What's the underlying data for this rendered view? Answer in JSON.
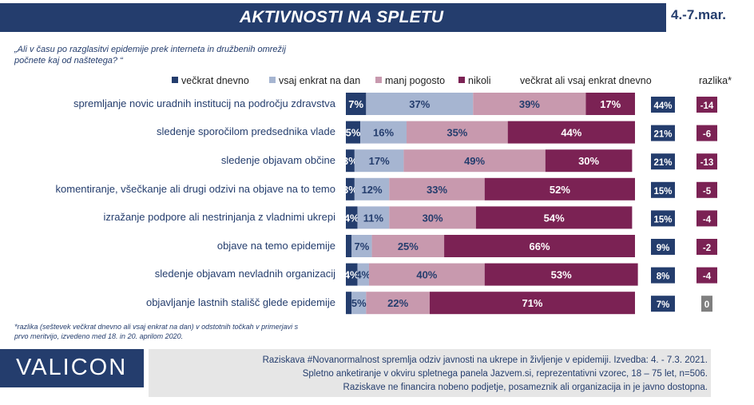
{
  "header": {
    "title": "AKTIVNOSTI NA SPLETU",
    "date": "4.-7.mar."
  },
  "question": "„Ali v času po razglasitvi epidemije prek interneta in družbenih omrežij počnete kaj od naštetega? “",
  "legend": [
    {
      "label": "večkrat dnevno",
      "color": "#243d6d"
    },
    {
      "label": "vsaj enkrat na dan",
      "color": "#a6b5d1"
    },
    {
      "label": "manj pogosto",
      "color": "#c899ae"
    },
    {
      "label": "nikoli",
      "color": "#7b2254"
    }
  ],
  "column_headers": {
    "combined": "večkrat ali vsaj enkrat dnevno",
    "difference": "razlika*"
  },
  "colors": {
    "navy": "#243d6d",
    "light_blue": "#a6b5d1",
    "pink": "#c899ae",
    "plum": "#7b2254",
    "gray": "#7f7f7f"
  },
  "chart_data": {
    "type": "bar",
    "stacked": true,
    "orientation": "horizontal",
    "categories": [
      "spremljanje novic uradnih institucij na področju zdravstva",
      "sledenje sporočilom predsednika vlade",
      "sledenje objavam občine",
      "komentiranje, všečkanje ali drugi odzivi na objave na to temo",
      "izražanje podpore ali nestrinjanja z vladnimi ukrepi",
      "objave na temo epidemije",
      "sledenje objavam nevladnih organizacij",
      "objavljanje lastnih stališč glede epidemije"
    ],
    "series": [
      {
        "name": "večkrat dnevno",
        "values": [
          7,
          5,
          3,
          3,
          4,
          2,
          4,
          2
        ],
        "labels": [
          "7%",
          "5%",
          "3%",
          "3%",
          "4%",
          "",
          "4%",
          ""
        ]
      },
      {
        "name": "vsaj enkrat na dan",
        "values": [
          37,
          16,
          17,
          12,
          11,
          7,
          4,
          5
        ],
        "labels": [
          "37%",
          "16%",
          "17%",
          "12%",
          "11%",
          "7%",
          "4%",
          "5%"
        ]
      },
      {
        "name": "manj pogosto",
        "values": [
          39,
          35,
          49,
          33,
          30,
          25,
          40,
          22
        ],
        "labels": [
          "39%",
          "35%",
          "49%",
          "33%",
          "30%",
          "25%",
          "40%",
          "22%"
        ]
      },
      {
        "name": "nikoli",
        "values": [
          17,
          44,
          30,
          52,
          54,
          66,
          53,
          71
        ],
        "labels": [
          "17%",
          "44%",
          "30%",
          "52%",
          "54%",
          "66%",
          "53%",
          "71%"
        ]
      }
    ],
    "combined": [
      "44%",
      "21%",
      "21%",
      "15%",
      "15%",
      "9%",
      "8%",
      "7%"
    ],
    "difference": [
      "-14",
      "-6",
      "-13",
      "-5",
      "-4",
      "-2",
      "-4",
      "0"
    ],
    "xlim": [
      0,
      100
    ]
  },
  "footnote": "*razlika (seštevek večkrat dnevno ali vsaj enkrat na dan) v odstotnih točkah v primerjavi s prvo meritvijo, izvedeno med 18. in 20. aprilom 2020.",
  "logo": "VALICON",
  "info": [
    "Raziskava #Novanormalnost spremlja odziv javnosti na ukrepe in življenje v epidemiji. Izvedba: 4. - 7.3. 2021.",
    "Spletno anketiranje v okviru spletnega panela Jazvem.si, reprezentativni vzorec, 18 – 75 let, n=506.",
    "Raziskave ne financira nobeno podjetje, posameznik ali organizacija in je javno dostopna."
  ]
}
